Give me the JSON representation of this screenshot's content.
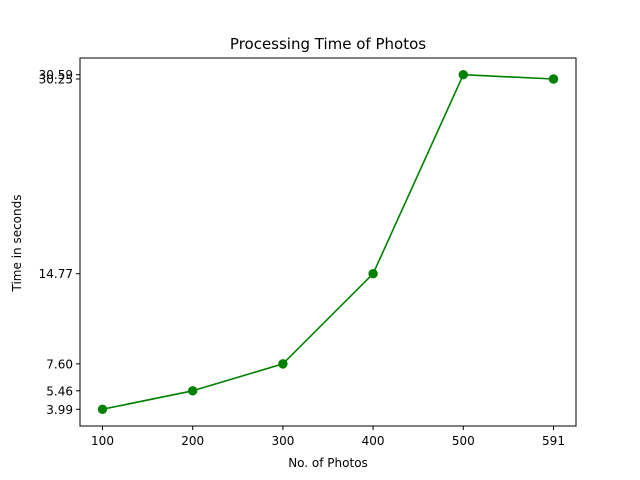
{
  "chart_data": {
    "type": "line",
    "title": "Processing Time of Photos",
    "xlabel": "No. of Photos",
    "ylabel": "Time in seconds",
    "x": [
      "100",
      "200",
      "300",
      "400",
      "500",
      "591"
    ],
    "y_ticks": [
      "3.99",
      "5.46",
      "7.60",
      "14.77",
      "30.25",
      "30.59"
    ],
    "series": [
      {
        "values": [
          3.99,
          5.46,
          7.6,
          14.77,
          30.59,
          30.25
        ],
        "color": "#008000",
        "marker": "circle"
      }
    ],
    "ylim": [
      2.66,
      31.92
    ],
    "grid": false,
    "legend": "none"
  }
}
